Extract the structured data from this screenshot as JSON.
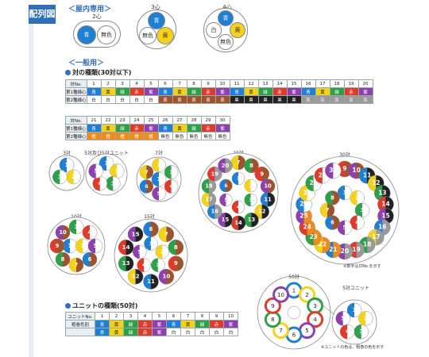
{
  "header_tag": "配列図",
  "indoor": {
    "title": "＜屋内専用＞",
    "cables": [
      {
        "label": "2心",
        "cores": [
          {
            "text": "青",
            "color": "#1f7fd4",
            "fg": "#fff"
          },
          {
            "text": "無色",
            "color": "#ffffff",
            "fg": "#333"
          }
        ]
      },
      {
        "label": "3心",
        "cores": [
          {
            "text": "青",
            "color": "#1f7fd4",
            "fg": "#fff"
          },
          {
            "text": "無色",
            "color": "#ffffff",
            "fg": "#333"
          },
          {
            "text": "黄",
            "color": "#f4d21a",
            "fg": "#333"
          }
        ]
      },
      {
        "label": "4心",
        "cores": [
          {
            "text": "青",
            "color": "#1f7fd4",
            "fg": "#fff"
          },
          {
            "text": "白",
            "color": "#ffffff",
            "fg": "#333"
          },
          {
            "text": "黄",
            "color": "#f4d21a",
            "fg": "#333"
          },
          {
            "text": "無色",
            "color": "#ffffff",
            "fg": "#333"
          }
        ]
      }
    ]
  },
  "general": {
    "title": "＜一般用＞",
    "pair_types_title": "対の種類(30対以下)",
    "row_header": "対No.",
    "row1_label": "第1種線心",
    "row2_label": "第2種線心",
    "table1": {
      "numbers": [
        "1",
        "2",
        "3",
        "4",
        "5",
        "6",
        "7",
        "8",
        "9",
        "10",
        "11",
        "12",
        "13",
        "14",
        "15",
        "16",
        "17",
        "18",
        "19",
        "20"
      ],
      "row1": [
        "青",
        "黄",
        "緑",
        "赤",
        "紫",
        "青",
        "黄",
        "緑",
        "赤",
        "紫",
        "青",
        "黄",
        "緑",
        "赤",
        "紫",
        "青",
        "黄",
        "緑",
        "赤",
        "紫"
      ],
      "row2": [
        "白",
        "白",
        "白",
        "白",
        "白",
        "茶",
        "茶",
        "茶",
        "茶",
        "茶",
        "黒",
        "黒",
        "黒",
        "黒",
        "黒",
        "灰",
        "灰",
        "灰",
        "灰",
        "灰"
      ]
    },
    "table2": {
      "numbers": [
        "21",
        "22",
        "23",
        "24",
        "25",
        "26",
        "27",
        "28",
        "29",
        "30"
      ],
      "row1": [
        "青",
        "黄",
        "緑",
        "赤",
        "紫",
        "青",
        "黄",
        "緑",
        "赤",
        "紫"
      ],
      "row2": [
        "橙",
        "橙",
        "橙",
        "橙",
        "橙",
        "無色",
        "無色",
        "無色",
        "無色",
        "無色"
      ]
    },
    "diagram_labels": [
      "3対",
      "5対及び5対ユニット",
      "7対",
      "20対",
      "30対",
      "10対",
      "15対"
    ],
    "pair_note": "※数字は対No.を示す",
    "unit_title": "ユニットの種類(50対)",
    "unit_table": {
      "header": "ユニットNo.",
      "label": "粗巻色別",
      "numbers": [
        "1",
        "2",
        "3",
        "4",
        "5",
        "6",
        "7",
        "8",
        "9",
        "10"
      ],
      "row1": [
        "青",
        "黄",
        "緑",
        "赤",
        "紫",
        "青",
        "黄",
        "緑",
        "赤",
        "紫"
      ],
      "row2": [
        "青",
        "黄",
        "緑",
        "赤",
        "紫",
        "白",
        "白",
        "白",
        "白",
        "白"
      ]
    },
    "unit50_label": "50対",
    "unit5_label": "5対ユニット",
    "unit_note": "※ユニットの色は、粗巻の色を示す",
    "unit50_numbers": [
      "1",
      "2",
      "3",
      "4",
      "5",
      "6",
      "7",
      "8",
      "9",
      "10"
    ],
    "unit5_numbers": [
      "1",
      "2",
      "3",
      "4",
      "5"
    ]
  },
  "colors": {
    "青": "#1f7fd4",
    "黄": "#f4d21a",
    "緑": "#2ea04a",
    "赤": "#e23a2a",
    "紫": "#8e3fb0",
    "白": "#ffffff",
    "茶": "#a0522d",
    "黒": "#222222",
    "灰": "#9a9a9a",
    "橙": "#f08a1c",
    "無色": "#ffffff"
  }
}
